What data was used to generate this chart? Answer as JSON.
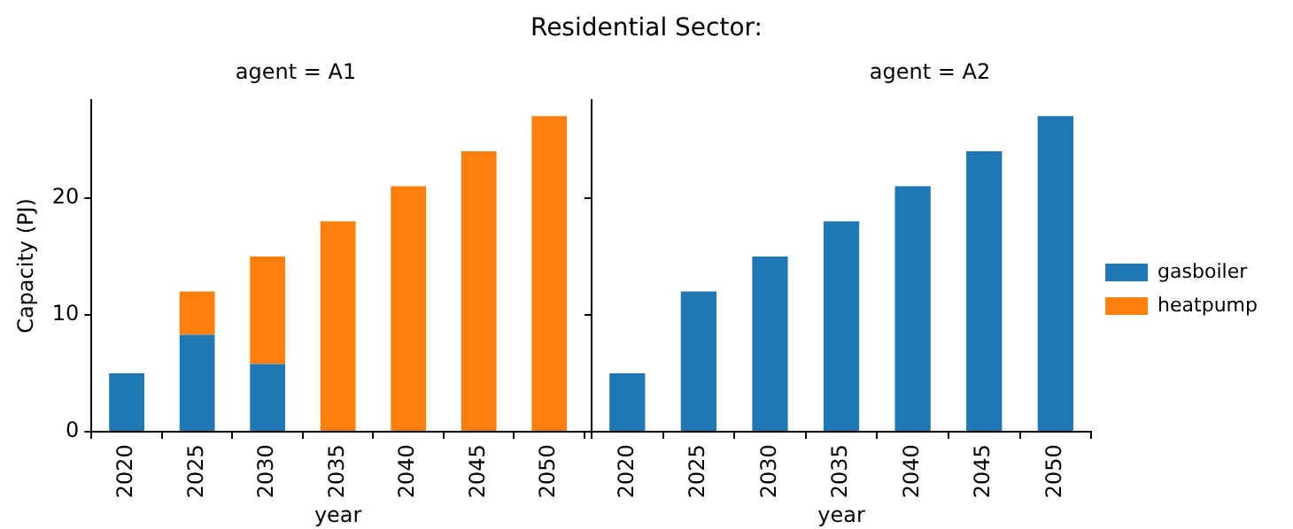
{
  "chart_data": [
    {
      "type": "bar",
      "title": "Residential Sector:",
      "subtitle": "agent = A1",
      "xlabel": "year",
      "ylabel": "Capacity (PJ)",
      "categories": [
        "2020",
        "2025",
        "2030",
        "2035",
        "2040",
        "2045",
        "2050"
      ],
      "stacked": true,
      "series": [
        {
          "color": "#1f77b4",
          "values": [
            5,
            8.3,
            5.8,
            0,
            0,
            0,
            0
          ]
        },
        {
          "color": "#ff7f0e",
          "values": [
            0,
            3.7,
            9.2,
            18,
            21,
            24,
            27
          ]
        }
      ],
      "ylim": [
        0,
        28.4
      ],
      "yticks": [
        0,
        10,
        20
      ],
      "grid": false,
      "legend": false
    },
    {
      "type": "bar",
      "subtitle": "agent = A2",
      "xlabel": "year",
      "categories": [
        "2020",
        "2025",
        "2030",
        "2035",
        "2040",
        "2045",
        "2050"
      ],
      "stacked": true,
      "series": [
        {
          "name": "gasboiler",
          "color": "#1f77b4",
          "values": [
            5,
            12,
            15,
            18,
            21,
            24,
            27
          ]
        },
        {
          "name": "heatpump",
          "color": "#ff7f0e",
          "values": [
            0,
            0,
            0,
            0,
            0,
            0,
            0
          ]
        }
      ],
      "ylim": [
        0,
        28.4
      ],
      "yticks": [
        0,
        10,
        20
      ],
      "grid": false,
      "legend": "right",
      "tick_labels": "x"
    }
  ]
}
